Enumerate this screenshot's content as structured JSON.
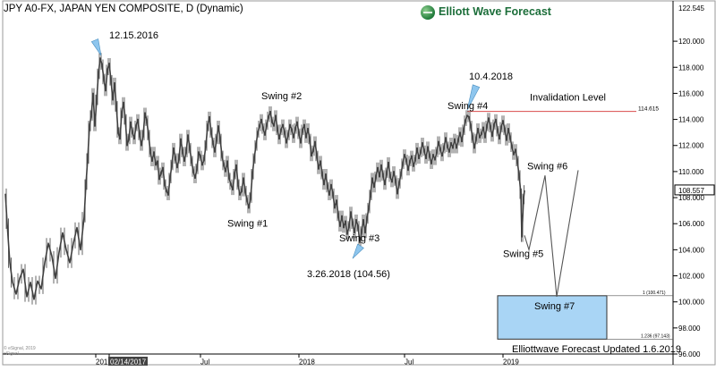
{
  "header": {
    "title": "JPY A0-FX, JAPAN YEN COMPOSITE, D (Dynamic)",
    "logo_text": "Elliott Wave Forecast"
  },
  "footer": {
    "note": "Elliottwave Forecast Updated 1.6.2019",
    "watermark_1": "© eSignal, 2019",
    "watermark_2": "eSignal"
  },
  "colors": {
    "price": "#404040",
    "invalidation": "#d94c4c",
    "target_box": "#a9d5f5",
    "target_border": "#303030",
    "arrow": "#8ec6ee",
    "accent": "#1c6e3a"
  },
  "chart_data": {
    "type": "line",
    "title": "JPY A0-FX, JAPAN YEN COMPOSITE, D (Dynamic)",
    "xlabel": "",
    "ylabel": "",
    "ylim": [
      96.0,
      122.545
    ],
    "y_ticks": [
      96,
      98,
      100,
      102,
      104,
      106,
      108,
      110,
      112,
      114,
      116,
      118,
      120
    ],
    "y_tick_labels": [
      "96.000",
      "98.000",
      "100.000",
      "102.000",
      "104.000",
      "106.000",
      "108.000",
      "110.000",
      "112.000",
      "114.000",
      "116.000",
      "118.000",
      "120.000"
    ],
    "y_top_label": "122.545",
    "last_price": "108.557",
    "x_tick_labels": [
      "201",
      "02/14/2017",
      "Jul",
      "2018",
      "Jul",
      "2019"
    ],
    "series": [
      {
        "values": [
          [
            -2,
            108.3
          ],
          [
            0,
            106.0
          ],
          [
            3,
            103.0
          ],
          [
            6,
            101.5
          ],
          [
            10,
            100.6
          ],
          [
            14,
            101.8
          ],
          [
            18,
            102.5
          ],
          [
            22,
            100.4
          ],
          [
            26,
            101.5
          ],
          [
            30,
            100.2
          ],
          [
            34,
            101.6
          ],
          [
            38,
            101.0
          ],
          [
            42,
            103.0
          ],
          [
            46,
            104.5
          ],
          [
            50,
            103.5
          ],
          [
            54,
            101.8
          ],
          [
            58,
            103.8
          ],
          [
            62,
            105.3
          ],
          [
            66,
            104.0
          ],
          [
            70,
            103.0
          ],
          [
            74,
            104.5
          ],
          [
            78,
            105.7
          ],
          [
            82,
            104.0
          ],
          [
            86,
            106.5
          ],
          [
            88,
            109.0
          ],
          [
            90,
            111.0
          ],
          [
            92,
            113.5
          ],
          [
            94,
            114.3
          ],
          [
            96,
            116.0
          ],
          [
            98,
            113.5
          ],
          [
            100,
            115.5
          ],
          [
            102,
            117.5
          ],
          [
            104,
            118.7
          ],
          [
            106,
            118.2
          ],
          [
            108,
            117.1
          ],
          [
            110,
            116.2
          ],
          [
            112,
            117.8
          ],
          [
            114,
            118.3
          ],
          [
            116,
            117.0
          ],
          [
            118,
            115.5
          ],
          [
            120,
            116.8
          ],
          [
            122,
            115.0
          ],
          [
            124,
            113.0
          ],
          [
            126,
            112.5
          ],
          [
            128,
            114.5
          ],
          [
            130,
            115.3
          ],
          [
            132,
            114.0
          ],
          [
            134,
            112.0
          ],
          [
            136,
            112.5
          ],
          [
            138,
            113.8
          ],
          [
            140,
            113.0
          ],
          [
            142,
            112.5
          ],
          [
            144,
            113.5
          ],
          [
            146,
            114.0
          ],
          [
            148,
            112.8
          ],
          [
            150,
            112.0
          ],
          [
            152,
            112.8
          ],
          [
            154,
            114.5
          ],
          [
            156,
            113.9
          ],
          [
            158,
            112.8
          ],
          [
            160,
            111.5
          ],
          [
            162,
            110.8
          ],
          [
            164,
            111.5
          ],
          [
            166,
            110.5
          ],
          [
            168,
            110.8
          ],
          [
            170,
            109.4
          ],
          [
            172,
            109.9
          ],
          [
            174,
            110.3
          ],
          [
            176,
            109.0
          ],
          [
            178,
            108.5
          ],
          [
            180,
            108.2
          ],
          [
            182,
            109.5
          ],
          [
            184,
            110.5
          ],
          [
            186,
            111.8
          ],
          [
            188,
            111.0
          ],
          [
            190,
            110.3
          ],
          [
            192,
            111.0
          ],
          [
            194,
            112.5
          ],
          [
            196,
            111.5
          ],
          [
            198,
            110.8
          ],
          [
            200,
            111.5
          ],
          [
            202,
            112.8
          ],
          [
            204,
            111.8
          ],
          [
            206,
            110.8
          ],
          [
            208,
            110.0
          ],
          [
            210,
            109.5
          ],
          [
            212,
            110.2
          ],
          [
            214,
            111.5
          ],
          [
            216,
            111.2
          ],
          [
            218,
            110.5
          ],
          [
            220,
            110.9
          ],
          [
            222,
            112.0
          ],
          [
            224,
            113.5
          ],
          [
            226,
            114.2
          ],
          [
            228,
            113.0
          ],
          [
            230,
            112.2
          ],
          [
            232,
            111.5
          ],
          [
            234,
            112.5
          ],
          [
            236,
            113.5
          ],
          [
            238,
            112.5
          ],
          [
            240,
            111.2
          ],
          [
            242,
            110.5
          ],
          [
            244,
            110.0
          ],
          [
            246,
            110.8
          ],
          [
            248,
            109.5
          ],
          [
            250,
            109.0
          ],
          [
            252,
            108.6
          ],
          [
            254,
            109.8
          ],
          [
            256,
            110.5
          ],
          [
            258,
            109.0
          ],
          [
            260,
            108.2
          ],
          [
            262,
            108.5
          ],
          [
            264,
            109.5
          ],
          [
            266,
            108.5
          ],
          [
            268,
            107.8
          ],
          [
            270,
            107.2
          ],
          [
            272,
            108.0
          ],
          [
            274,
            109.8
          ],
          [
            276,
            111.0
          ],
          [
            278,
            112.0
          ],
          [
            280,
            113.0
          ],
          [
            282,
            113.5
          ],
          [
            284,
            114.0
          ],
          [
            286,
            113.3
          ],
          [
            288,
            112.8
          ],
          [
            290,
            113.6
          ],
          [
            292,
            114.2
          ],
          [
            294,
            114.6
          ],
          [
            296,
            113.8
          ],
          [
            298,
            113.5
          ],
          [
            300,
            114.3
          ],
          [
            302,
            113.2
          ],
          [
            304,
            112.5
          ],
          [
            306,
            113.2
          ],
          [
            308,
            113.6
          ],
          [
            310,
            113.0
          ],
          [
            312,
            112.2
          ],
          [
            314,
            112.8
          ],
          [
            316,
            113.6
          ],
          [
            318,
            113.2
          ],
          [
            320,
            112.6
          ],
          [
            322,
            113.3
          ],
          [
            324,
            113.8
          ],
          [
            326,
            112.9
          ],
          [
            328,
            112.2
          ],
          [
            330,
            113.2
          ],
          [
            332,
            113.6
          ],
          [
            334,
            112.6
          ],
          [
            336,
            113.3
          ],
          [
            338,
            112.5
          ],
          [
            340,
            111.2
          ],
          [
            342,
            111.6
          ],
          [
            344,
            112.3
          ],
          [
            346,
            111.2
          ],
          [
            348,
            110.2
          ],
          [
            350,
            110.8
          ],
          [
            352,
            109.8
          ],
          [
            354,
            109.0
          ],
          [
            356,
            109.8
          ],
          [
            358,
            108.8
          ],
          [
            360,
            108.2
          ],
          [
            362,
            109.0
          ],
          [
            364,
            108.3
          ],
          [
            366,
            107.2
          ],
          [
            368,
            107.8
          ],
          [
            370,
            106.6
          ],
          [
            372,
            105.8
          ],
          [
            374,
            106.6
          ],
          [
            376,
            105.7
          ],
          [
            378,
            106.2
          ],
          [
            380,
            105.2
          ],
          [
            382,
            105.8
          ],
          [
            384,
            106.9
          ],
          [
            386,
            106.0
          ],
          [
            388,
            105.3
          ],
          [
            390,
            106.3
          ],
          [
            392,
            105.8
          ],
          [
            394,
            104.56
          ],
          [
            396,
            105.4
          ],
          [
            398,
            106.3
          ],
          [
            400,
            105.3
          ],
          [
            402,
            106.4
          ],
          [
            404,
            107.2
          ],
          [
            406,
            108.2
          ],
          [
            408,
            109.5
          ],
          [
            410,
            108.8
          ],
          [
            412,
            109.6
          ],
          [
            414,
            110.3
          ],
          [
            416,
            109.6
          ],
          [
            418,
            110.5
          ],
          [
            420,
            109.7
          ],
          [
            422,
            109.0
          ],
          [
            424,
            109.9
          ],
          [
            426,
            110.7
          ],
          [
            428,
            109.6
          ],
          [
            430,
            109.2
          ],
          [
            432,
            110.0
          ],
          [
            434,
            109.3
          ],
          [
            436,
            108.3
          ],
          [
            438,
            109.1
          ],
          [
            440,
            109.8
          ],
          [
            442,
            110.6
          ],
          [
            444,
            111.3
          ],
          [
            446,
            110.9
          ],
          [
            448,
            110.1
          ],
          [
            450,
            110.8
          ],
          [
            452,
            111.2
          ],
          [
            454,
            110.4
          ],
          [
            456,
            110.9
          ],
          [
            458,
            111.8
          ],
          [
            460,
            111.0
          ],
          [
            462,
            111.5
          ],
          [
            464,
            112.2
          ],
          [
            466,
            111.6
          ],
          [
            468,
            111.0
          ],
          [
            470,
            111.9
          ],
          [
            472,
            111.2
          ],
          [
            474,
            110.6
          ],
          [
            476,
            111.3
          ],
          [
            478,
            110.9
          ],
          [
            480,
            111.5
          ],
          [
            482,
            112.3
          ],
          [
            484,
            111.7
          ],
          [
            486,
            111.2
          ],
          [
            488,
            111.8
          ],
          [
            490,
            112.6
          ],
          [
            492,
            111.9
          ],
          [
            494,
            111.5
          ],
          [
            496,
            112.2
          ],
          [
            498,
            111.8
          ],
          [
            500,
            112.5
          ],
          [
            502,
            111.8
          ],
          [
            504,
            112.4
          ],
          [
            506,
            113.0
          ],
          [
            508,
            112.3
          ],
          [
            510,
            113.2
          ],
          [
            512,
            113.9
          ],
          [
            514,
            114.3
          ],
          [
            516,
            114.2
          ],
          [
            518,
            113.5
          ],
          [
            520,
            112.6
          ],
          [
            522,
            111.8
          ],
          [
            524,
            112.5
          ],
          [
            526,
            113.3
          ],
          [
            528,
            112.6
          ],
          [
            530,
            112.9
          ],
          [
            532,
            113.4
          ],
          [
            534,
            112.6
          ],
          [
            536,
            113.5
          ],
          [
            538,
            114.1
          ],
          [
            540,
            113.4
          ],
          [
            542,
            112.7
          ],
          [
            544,
            113.6
          ],
          [
            546,
            114.0
          ],
          [
            548,
            113.1
          ],
          [
            550,
            112.5
          ],
          [
            552,
            113.4
          ],
          [
            554,
            113.9
          ],
          [
            556,
            113.2
          ],
          [
            558,
            112.4
          ],
          [
            560,
            113.3
          ],
          [
            562,
            112.6
          ],
          [
            564,
            111.9
          ],
          [
            566,
            111.3
          ],
          [
            568,
            111.7
          ],
          [
            570,
            110.8
          ],
          [
            572,
            109.7
          ],
          [
            574,
            108.3
          ],
          [
            575,
            105.0
          ],
          [
            577,
            107.9
          ],
          [
            578,
            108.557
          ]
        ]
      }
    ],
    "projection": [
      [
        578,
        105.1
      ],
      [
        583,
        104.0
      ],
      [
        601,
        109.7
      ],
      [
        614,
        100.4
      ],
      [
        638,
        110.1
      ]
    ],
    "invalidation": {
      "label": "Invalidation Level",
      "value": 114.615,
      "value_label": "114.615"
    },
    "target_zone": {
      "top": 100.471,
      "bottom": 97.143,
      "top_label": "1 (100.471)",
      "bottom_label": "1.236 (97.143)",
      "label": "Swing #7"
    },
    "annotations": [
      {
        "text": "12.15.2016",
        "x": 104,
        "y": 118.7,
        "arrow": true
      },
      {
        "text": "Swing #2",
        "x": 294,
        "y": 114.6
      },
      {
        "text": "Swing #1",
        "x": 270,
        "y": 107.2
      },
      {
        "text": "Swing #3",
        "x": 394,
        "y": 104.56,
        "arrow": true
      },
      {
        "text": "3.26.2018 (104.56)",
        "x": 394,
        "y": 104.56
      },
      {
        "text": "10.4.2018",
        "x": 514,
        "y": 114.3,
        "arrow": true
      },
      {
        "text": "Swing #4",
        "x": 514,
        "y": 114.3
      },
      {
        "text": "Swing #5",
        "x": 578,
        "y": 105.1
      },
      {
        "text": "Swing #6",
        "x": 601,
        "y": 109.7
      }
    ]
  }
}
